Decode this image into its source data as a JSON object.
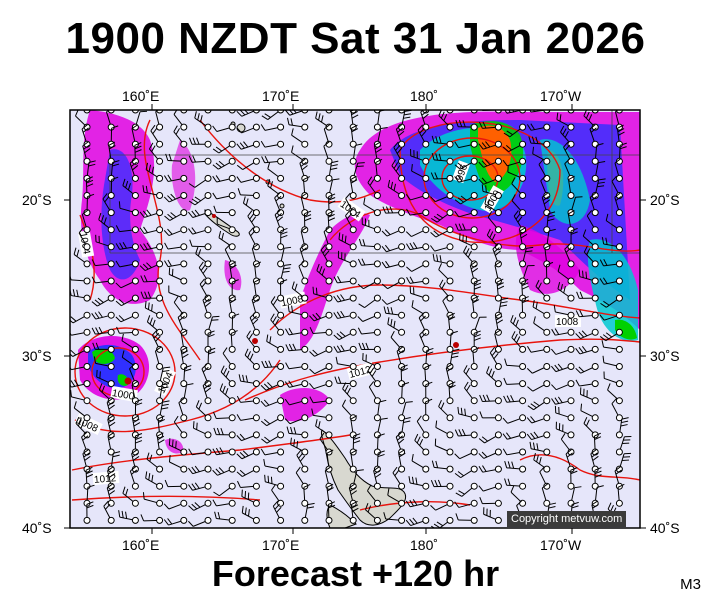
{
  "title": "1900 NZDT Sat 31 Jan 2026",
  "subtitle": "Forecast +120 hr",
  "model_tag": "M3",
  "copyright": "Copyright metvuw.com",
  "axes": {
    "lon_labels": [
      "160˚E",
      "170˚E",
      "180˚",
      "170˚W"
    ],
    "lat_labels": [
      "20˚S",
      "30˚S",
      "40˚S"
    ]
  },
  "isobar_labels": [
    "996",
    "1000",
    "1004",
    "1004",
    "1008",
    "1008",
    "1012",
    "1012",
    "1000",
    "1004",
    "1008"
  ],
  "colors": {
    "ocean": "#e6e6fa",
    "isobar": "#e8140e",
    "land": "#d8d8d0",
    "rain_light": "#e000e0",
    "rain_mid": "#2020ff",
    "rain_heavy": "#00c0c0",
    "rain_very_heavy": "#00d000",
    "rain_extreme": "#ff6000"
  }
}
